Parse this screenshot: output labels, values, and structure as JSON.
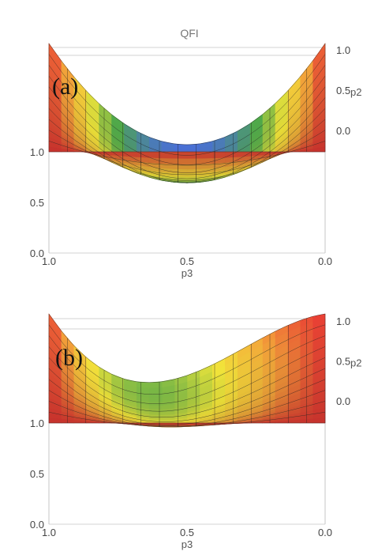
{
  "figure": {
    "title": "QFI",
    "panels": [
      {
        "id": "a",
        "tag": "(a)"
      },
      {
        "id": "b",
        "tag": "(b)"
      }
    ]
  },
  "chart_data": [
    {
      "type": "surface3d",
      "panel": "(a)",
      "title": "QFI",
      "xlabel": "p3",
      "ylabel": "p2",
      "zlabel": "",
      "x_range": [
        0,
        1
      ],
      "y_range": [
        0,
        1
      ],
      "z_range": [
        0,
        1
      ],
      "x_ticks": [
        "1.0",
        "0.5",
        "0.0"
      ],
      "y_ticks": [
        "0.0",
        "0.5",
        "1.0"
      ],
      "z_ticks": [
        "0.0",
        "0.5",
        "1.0"
      ],
      "colormap": [
        "#4a6fd6",
        "#4fa84a",
        "#f2e53a",
        "#f3a33a",
        "#e83a34"
      ],
      "surface_points": [
        {
          "p3": 0.0,
          "p2": 1.0,
          "QFI": 1.0
        },
        {
          "p3": 0.25,
          "p2": 1.0,
          "QFI": 1.0
        },
        {
          "p3": 0.5,
          "p2": 1.0,
          "QFI": 1.0
        },
        {
          "p3": 0.75,
          "p2": 1.0,
          "QFI": 1.0
        },
        {
          "p3": 1.0,
          "p2": 1.0,
          "QFI": 1.0
        },
        {
          "p3": 0.0,
          "p2": 0.5,
          "QFI": 0.5
        },
        {
          "p3": 0.25,
          "p2": 0.5,
          "QFI": 0.58
        },
        {
          "p3": 0.5,
          "p2": 0.5,
          "QFI": 0.65
        },
        {
          "p3": 0.75,
          "p2": 0.5,
          "QFI": 0.74
        },
        {
          "p3": 1.0,
          "p2": 0.5,
          "QFI": 1.0
        },
        {
          "p3": 0.0,
          "p2": 0.0,
          "QFI": 0.25
        },
        {
          "p3": 0.25,
          "p2": 0.0,
          "QFI": 0.1
        },
        {
          "p3": 0.5,
          "p2": 0.0,
          "QFI": 0.0
        },
        {
          "p3": 0.75,
          "p2": 0.0,
          "QFI": 0.25
        },
        {
          "p3": 1.0,
          "p2": 0.0,
          "QFI": 1.0
        }
      ],
      "grid": true,
      "legend": "none"
    },
    {
      "type": "surface3d",
      "panel": "(b)",
      "title": "",
      "xlabel": "p3",
      "ylabel": "p2",
      "zlabel": "",
      "x_range": [
        0,
        1
      ],
      "y_range": [
        0,
        1
      ],
      "z_range": [
        0,
        1
      ],
      "x_ticks": [
        "1.0",
        "0.5",
        "0.0"
      ],
      "y_ticks": [
        "0.0",
        "0.5",
        "1.0"
      ],
      "z_ticks": [
        "0.0",
        "0.5",
        "1.0"
      ],
      "colormap": [
        "#4a6fd6",
        "#4fa84a",
        "#f2e53a",
        "#f3a33a",
        "#e83a34"
      ],
      "surface_points": [
        {
          "p3": 0.0,
          "p2": 1.0,
          "QFI": 1.0
        },
        {
          "p3": 0.25,
          "p2": 1.0,
          "QFI": 1.0
        },
        {
          "p3": 0.5,
          "p2": 1.0,
          "QFI": 1.0
        },
        {
          "p3": 0.75,
          "p2": 1.0,
          "QFI": 1.0
        },
        {
          "p3": 1.0,
          "p2": 1.0,
          "QFI": 1.0
        },
        {
          "p3": 0.0,
          "p2": 0.5,
          "QFI": 0.9
        },
        {
          "p3": 0.25,
          "p2": 0.5,
          "QFI": 0.75
        },
        {
          "p3": 0.5,
          "p2": 0.5,
          "QFI": 0.65
        },
        {
          "p3": 0.75,
          "p2": 0.5,
          "QFI": 0.74
        },
        {
          "p3": 1.0,
          "p2": 0.5,
          "QFI": 1.0
        },
        {
          "p3": 0.0,
          "p2": 0.0,
          "QFI": 0.8
        },
        {
          "p3": 0.25,
          "p2": 0.0,
          "QFI": 0.4
        },
        {
          "p3": 0.5,
          "p2": 0.0,
          "QFI": 0.0
        },
        {
          "p3": 0.75,
          "p2": 0.0,
          "QFI": 0.25
        },
        {
          "p3": 1.0,
          "p2": 0.0,
          "QFI": 1.0
        }
      ],
      "grid": true,
      "legend": "none"
    }
  ]
}
